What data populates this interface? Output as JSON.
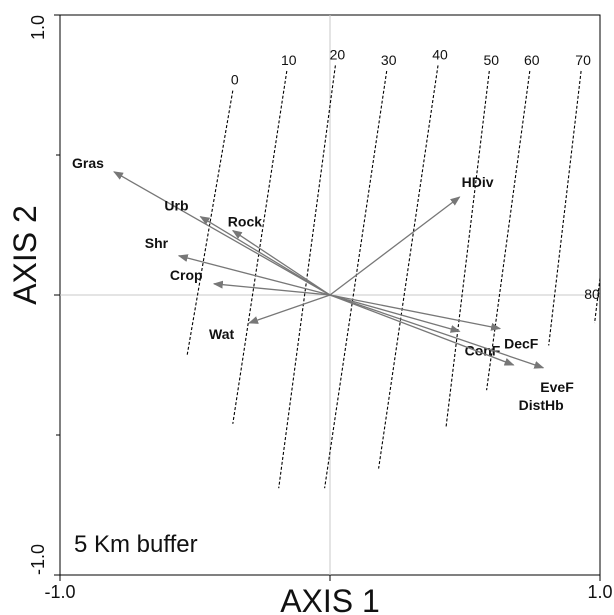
{
  "chart_data": {
    "type": "scatter",
    "subtype": "biplot",
    "annotation": "5 Km buffer",
    "xlabel": "AXIS 1",
    "ylabel": "AXIS 2",
    "xlim": [
      -1.0,
      1.0
    ],
    "ylim": [
      -1.0,
      1.0
    ],
    "x_tick_labels": [
      "-1.0",
      "1.0"
    ],
    "y_tick_labels": [
      "-1.0",
      "1.0"
    ],
    "grid": false,
    "zero_lines": true,
    "arrow_color": "#777777",
    "vectors": [
      {
        "name": "Gras",
        "x": -0.8,
        "y": 0.44
      },
      {
        "name": "Urb",
        "x": -0.48,
        "y": 0.28
      },
      {
        "name": "Rock",
        "x": -0.36,
        "y": 0.23
      },
      {
        "name": "Shr",
        "x": -0.56,
        "y": 0.14
      },
      {
        "name": "Crop",
        "x": -0.43,
        "y": 0.04
      },
      {
        "name": "Wat",
        "x": -0.3,
        "y": -0.1
      },
      {
        "name": "HDiv",
        "x": 0.48,
        "y": 0.35
      },
      {
        "name": "ConF",
        "x": 0.48,
        "y": -0.13
      },
      {
        "name": "DecF",
        "x": 0.63,
        "y": -0.12
      },
      {
        "name": "EveF",
        "x": 0.79,
        "y": -0.26
      },
      {
        "name": "DistHb",
        "x": 0.68,
        "y": -0.25
      }
    ],
    "isolines": [
      {
        "label": "0",
        "x_top": -0.36,
        "y_top": 0.73,
        "x_bottom": -0.53,
        "y_bottom": -0.22
      },
      {
        "label": "10",
        "x_top": -0.16,
        "y_top": 0.8,
        "x_bottom": -0.36,
        "y_bottom": -0.46
      },
      {
        "label": "20",
        "x_top": 0.02,
        "y_top": 0.82,
        "x_bottom": -0.19,
        "y_bottom": -0.69
      },
      {
        "label": "30",
        "x_top": 0.21,
        "y_top": 0.8,
        "x_bottom": -0.02,
        "y_bottom": -0.69
      },
      {
        "label": "40",
        "x_top": 0.4,
        "y_top": 0.82,
        "x_bottom": 0.18,
        "y_bottom": -0.62
      },
      {
        "label": "50",
        "x_top": 0.59,
        "y_top": 0.8,
        "x_bottom": 0.43,
        "y_bottom": -0.47
      },
      {
        "label": "60",
        "x_top": 0.74,
        "y_top": 0.8,
        "x_bottom": 0.58,
        "y_bottom": -0.34
      },
      {
        "label": "70",
        "x_top": 0.93,
        "y_top": 0.8,
        "x_bottom": 0.81,
        "y_bottom": -0.18
      },
      {
        "label": "80",
        "x_top": 1.0,
        "y_top": 0.06,
        "x_bottom": 0.98,
        "y_bottom": -0.1
      }
    ]
  }
}
